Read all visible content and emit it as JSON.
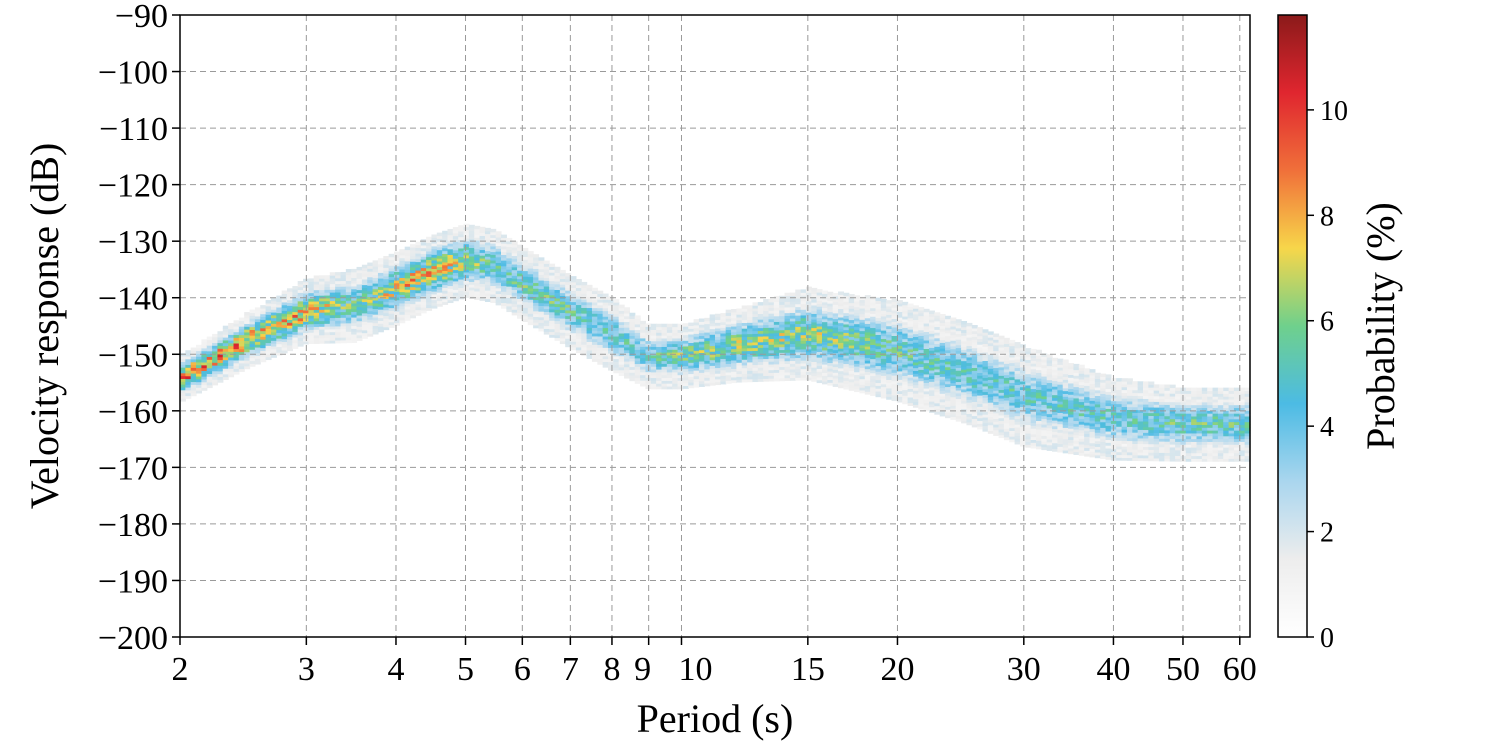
{
  "chart_data": {
    "type": "heatmap",
    "xlabel": "Period (s)",
    "ylabel": "Velocity response (dB)",
    "x_scale": "log",
    "xlim": [
      2,
      62
    ],
    "ylim": [
      -200,
      -90
    ],
    "x_ticks": [
      2,
      3,
      4,
      5,
      6,
      7,
      8,
      9,
      10,
      15,
      20,
      30,
      40,
      50,
      60
    ],
    "x_tick_labels": [
      "2",
      "3",
      "4",
      "5",
      "6",
      "7",
      "8",
      "9",
      "10",
      "15",
      "20",
      "30",
      "40",
      "50",
      "60"
    ],
    "y_ticks": [
      -90,
      -100,
      -110,
      -120,
      -130,
      -140,
      -150,
      -160,
      -170,
      -180,
      -190,
      -200
    ],
    "y_tick_labels": [
      "−90",
      "−100",
      "−110",
      "−120",
      "−130",
      "−140",
      "−150",
      "−160",
      "−170",
      "−180",
      "−190",
      "−200"
    ],
    "grid": true,
    "colorbar": {
      "label": "Probability (%)",
      "range": [
        0,
        11.8
      ],
      "ticks": [
        0,
        2,
        4,
        6,
        8,
        10
      ],
      "tick_labels": [
        "0",
        "2",
        "4",
        "6",
        "8",
        "10"
      ],
      "colors": [
        "#ffffff",
        "#ededed",
        "#aad6ee",
        "#4cbbe4",
        "#6fd08c",
        "#f7d64a",
        "#f0703a",
        "#e0262f",
        "#8b1a1a"
      ]
    },
    "band": {
      "period_s": [
        2,
        2.5,
        3,
        3.5,
        4,
        4.5,
        5,
        5.5,
        6,
        7,
        8,
        9,
        10,
        12,
        15,
        20,
        25,
        30,
        40,
        50,
        60
      ],
      "center_db": [
        -154,
        -147,
        -142,
        -141,
        -138,
        -135,
        -133,
        -134,
        -137,
        -142,
        -146,
        -150,
        -150,
        -148,
        -146,
        -149,
        -153,
        -157,
        -161,
        -162,
        -162
      ],
      "half_width_db": [
        2.5,
        3,
        3.5,
        4,
        4,
        4,
        4,
        4,
        4,
        4,
        4,
        3.5,
        3.5,
        4,
        5,
        5.5,
        5.5,
        5.5,
        4.5,
        4,
        4
      ],
      "peak_probability_pct": [
        8.5,
        8,
        7.5,
        5,
        7,
        7.5,
        6,
        5,
        5,
        5,
        4.5,
        4.5,
        5.5,
        6,
        6,
        5,
        4.5,
        4.5,
        4.5,
        5,
        5
      ]
    }
  }
}
